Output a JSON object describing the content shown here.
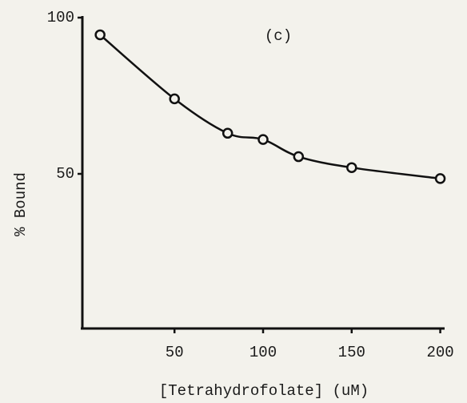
{
  "chart_data": {
    "type": "scatter",
    "annotation": "(c)",
    "x_label": "[Tetrahydrofolate] (uM)",
    "y_label": "% Bound",
    "x": [
      8,
      50,
      80,
      100,
      120,
      150,
      200
    ],
    "series": [
      {
        "values": [
          94.5,
          74,
          63,
          61,
          55.5,
          52,
          48.5
        ],
        "color": "#111111"
      }
    ],
    "curve": true,
    "xlim": [
      -2,
      202
    ],
    "xticks": [
      50,
      100,
      150,
      200
    ],
    "ylim": [
      0,
      100
    ],
    "yticks": [
      50,
      100
    ]
  }
}
